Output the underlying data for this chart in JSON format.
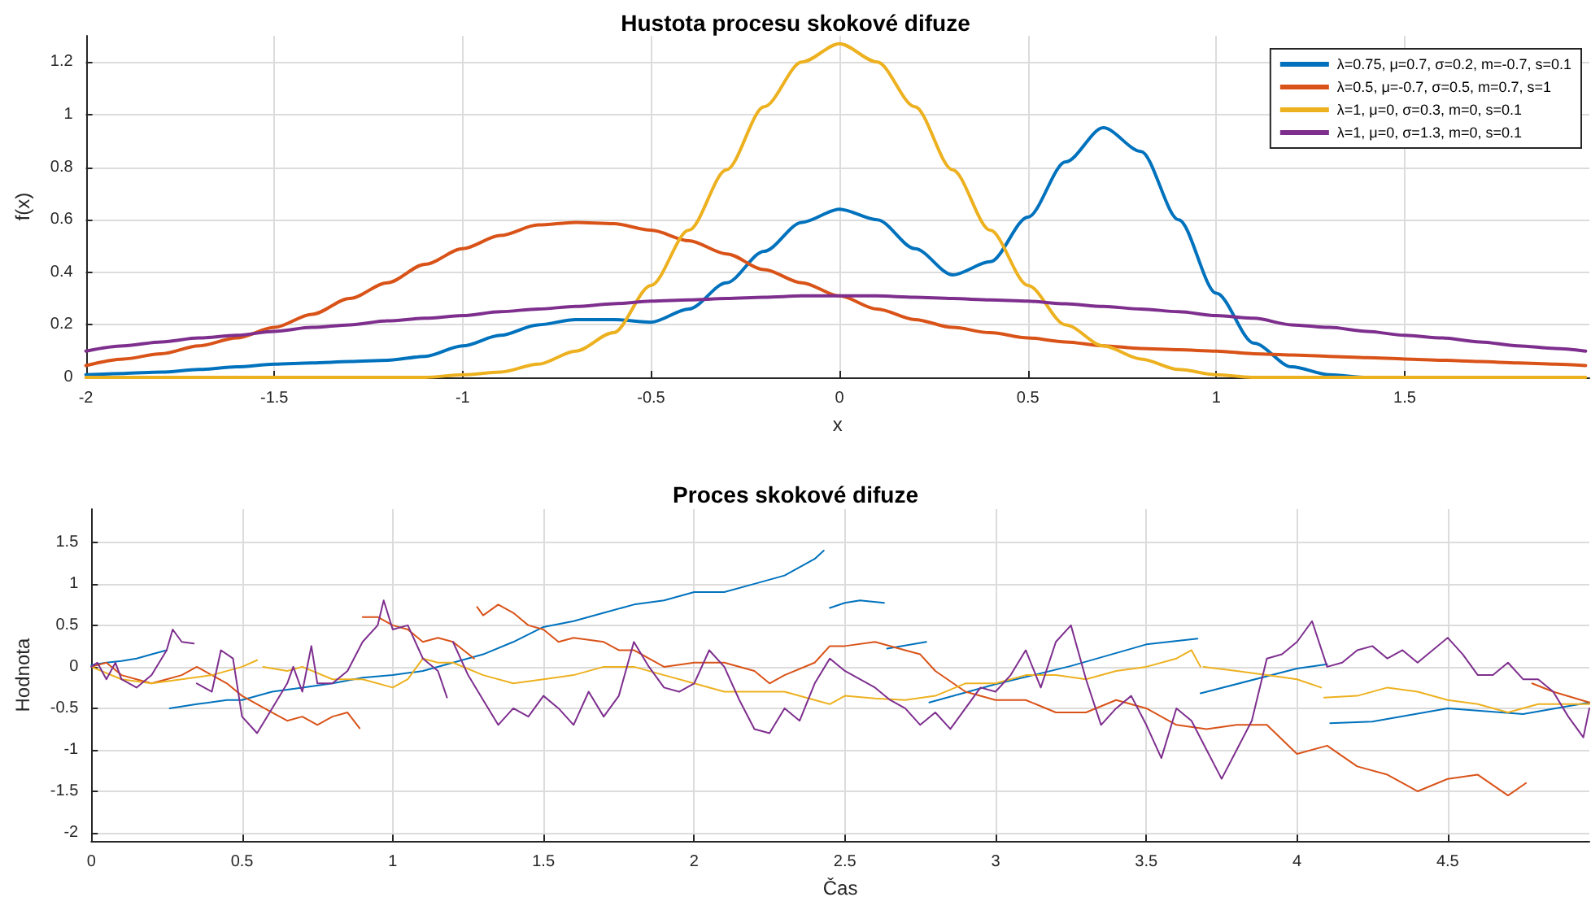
{
  "chart_data": [
    {
      "type": "line",
      "title": "Hustota procesu skokové difuze",
      "xlabel": "x",
      "ylabel": "f(x)",
      "xlim": [
        -2,
        1.99
      ],
      "xticks": [
        -2,
        -1.5,
        -1,
        -0.5,
        0,
        0.5,
        1,
        1.5
      ],
      "ylim": [
        0,
        1.3
      ],
      "yticks": [
        0,
        0.2,
        0.4,
        0.6,
        0.8,
        1,
        1.2
      ],
      "grid": true,
      "legend": "top right",
      "marker": "none",
      "line_style": "solid",
      "x": [
        -2,
        -1.9,
        -1.8,
        -1.7,
        -1.6,
        -1.5,
        -1.4,
        -1.3,
        -1.2,
        -1.1,
        -1,
        -0.9,
        -0.8,
        -0.7,
        -0.6,
        -0.5,
        -0.4,
        -0.3,
        -0.2,
        -0.1,
        0,
        0.1,
        0.2,
        0.3,
        0.4,
        0.5,
        0.6,
        0.7,
        0.8,
        0.9,
        1,
        1.1,
        1.2,
        1.3,
        1.4,
        1.5,
        1.6,
        1.7,
        1.8,
        1.9,
        1.98
      ],
      "series": [
        {
          "name": "λ=0.75, μ=0.7, σ=0.2, m=-0.7, s=0.1",
          "color": "#0072bd",
          "values": [
            0.01,
            0.015,
            0.02,
            0.03,
            0.04,
            0.05,
            0.055,
            0.06,
            0.065,
            0.08,
            0.12,
            0.16,
            0.2,
            0.22,
            0.22,
            0.21,
            0.26,
            0.36,
            0.48,
            0.59,
            0.64,
            0.6,
            0.49,
            0.39,
            0.44,
            0.61,
            0.82,
            0.95,
            0.86,
            0.6,
            0.32,
            0.13,
            0.04,
            0.01,
            0,
            0,
            null,
            null,
            null,
            null,
            null
          ]
        },
        {
          "name": "λ=0.5, μ=-0.7, σ=0.5, m=0.7, s=1",
          "color": "#d95319",
          "values": [
            0.045,
            0.07,
            0.09,
            0.12,
            0.15,
            0.19,
            0.24,
            0.3,
            0.36,
            0.43,
            0.49,
            0.54,
            0.58,
            0.59,
            0.585,
            0.56,
            0.52,
            0.47,
            0.41,
            0.36,
            0.31,
            0.26,
            0.22,
            0.19,
            0.17,
            0.15,
            0.135,
            0.12,
            0.11,
            0.105,
            0.1,
            0.09,
            0.085,
            0.08,
            0.075,
            0.07,
            0.065,
            0.06,
            0.055,
            0.05,
            0.045
          ]
        },
        {
          "name": "λ=1, μ=0, σ=0.3, m=0, s=0.1",
          "color": "#edb120",
          "values": [
            0,
            0,
            0,
            0,
            0,
            0,
            0,
            0,
            0,
            0,
            0.01,
            0.02,
            0.05,
            0.1,
            0.17,
            0.35,
            0.56,
            0.79,
            1.03,
            1.2,
            1.27,
            1.2,
            1.03,
            0.79,
            0.56,
            0.35,
            0.2,
            0.12,
            0.07,
            0.03,
            0.01,
            0,
            0,
            0,
            0,
            0,
            0,
            0,
            0,
            0,
            0
          ]
        },
        {
          "name": "λ=1, μ=0, σ=1.3, m=0, s=0.1",
          "color": "#7e2f8e",
          "values": [
            0.1,
            0.12,
            0.135,
            0.15,
            0.16,
            0.175,
            0.19,
            0.2,
            0.215,
            0.225,
            0.235,
            0.25,
            0.26,
            0.27,
            0.28,
            0.29,
            0.295,
            0.3,
            0.305,
            0.31,
            0.31,
            0.31,
            0.305,
            0.3,
            0.295,
            0.29,
            0.28,
            0.27,
            0.26,
            0.25,
            0.235,
            0.225,
            0.2,
            0.19,
            0.175,
            0.16,
            0.15,
            0.135,
            0.12,
            0.11,
            0.1
          ]
        }
      ]
    },
    {
      "type": "line",
      "title": "Proces skokové difuze",
      "xlabel": "Čas",
      "ylabel": "Hodnota",
      "xlim": [
        0,
        4.97
      ],
      "xticks": [
        0,
        0.5,
        1,
        1.5,
        2,
        2.5,
        3,
        3.5,
        4,
        4.5
      ],
      "ylim": [
        -2.1,
        1.9
      ],
      "yticks": [
        -2,
        -1.5,
        -1,
        -0.5,
        0,
        0.5,
        1,
        1.5
      ],
      "grid": true,
      "marker": "none",
      "line_style": "solid",
      "series": [
        {
          "color": "#0072bd",
          "x": [
            0,
            0.05,
            0.1,
            0.15,
            0.2,
            0.25,
            0.255,
            0.26,
            0.35,
            0.45,
            0.5,
            0.6,
            0.7,
            0.8,
            0.9,
            1,
            1.1,
            1.2,
            1.3,
            1.4,
            1.5,
            1.6,
            1.7,
            1.8,
            1.9,
            2,
            2.1,
            2.2,
            2.3,
            2.4,
            2.43,
            2.435,
            2.45,
            2.5,
            2.55,
            2.63,
            2.635,
            2.64,
            2.77,
            2.775,
            2.78,
            3,
            3.25,
            3.5,
            3.67,
            3.675,
            3.68,
            4,
            4.1,
            4.105,
            4.11,
            4.25,
            4.5,
            4.75,
            4.97
          ],
          "values": [
            0.02,
            0.05,
            0.07,
            0.1,
            0.15,
            0.2,
            null,
            -0.5,
            -0.45,
            -0.4,
            -0.4,
            -0.3,
            -0.25,
            -0.2,
            -0.13,
            -0.1,
            -0.05,
            0.05,
            0.15,
            0.3,
            0.48,
            0.55,
            0.65,
            0.75,
            0.8,
            0.9,
            0.9,
            1,
            1.1,
            1.3,
            1.4,
            null,
            0.71,
            0.77,
            0.8,
            0.77,
            null,
            0.22,
            0.3,
            null,
            -0.43,
            -0.21,
            0.01,
            0.27,
            0.34,
            null,
            -0.32,
            -0.02,
            0.03,
            null,
            -0.68,
            -0.66,
            -0.5,
            -0.57,
            -0.43
          ]
        },
        {
          "color": "#d95319",
          "x": [
            0,
            0.05,
            0.1,
            0.15,
            0.2,
            0.25,
            0.3,
            0.35,
            0.4,
            0.45,
            0.5,
            0.55,
            0.6,
            0.65,
            0.7,
            0.75,
            0.8,
            0.85,
            0.89,
            0.895,
            0.9,
            0.95,
            1,
            1.05,
            1.1,
            1.15,
            1.2,
            1.27,
            1.275,
            1.28,
            1.3,
            1.35,
            1.4,
            1.45,
            1.5,
            1.55,
            1.6,
            1.7,
            1.75,
            1.8,
            1.85,
            1.9,
            2,
            2.1,
            2.2,
            2.25,
            2.3,
            2.4,
            2.45,
            2.5,
            2.6,
            2.7,
            2.75,
            2.8,
            2.9,
            3,
            3.1,
            3.2,
            3.3,
            3.4,
            3.5,
            3.6,
            3.7,
            3.8,
            3.9,
            4,
            4.1,
            4.2,
            4.3,
            4.4,
            4.5,
            4.6,
            4.7,
            4.76,
            4.77,
            4.78,
            4.85,
            4.97
          ],
          "values": [
            0,
            0.05,
            -0.1,
            -0.15,
            -0.2,
            -0.15,
            -0.1,
            0,
            -0.1,
            -0.2,
            -0.35,
            -0.45,
            -0.55,
            -0.65,
            -0.6,
            -0.7,
            -0.6,
            -0.55,
            -0.74,
            null,
            0.6,
            0.6,
            0.5,
            0.45,
            0.3,
            0.35,
            0.3,
            0.1,
            null,
            0.72,
            0.62,
            0.75,
            0.65,
            0.5,
            0.45,
            0.3,
            0.35,
            0.3,
            0.2,
            0.2,
            0.1,
            0,
            0.05,
            0.05,
            -0.05,
            -0.2,
            -0.1,
            0.05,
            0.25,
            0.25,
            0.3,
            0.2,
            0.15,
            -0.05,
            -0.3,
            -0.4,
            -0.4,
            -0.55,
            -0.55,
            -0.4,
            -0.5,
            -0.7,
            -0.75,
            -0.7,
            -0.7,
            -1.05,
            -0.95,
            -1.2,
            -1.3,
            -1.5,
            -1.35,
            -1.3,
            -1.55,
            -1.4,
            null,
            -0.2,
            -0.3,
            -0.43
          ]
        },
        {
          "color": "#edb120",
          "x": [
            0,
            0.1,
            0.2,
            0.3,
            0.4,
            0.5,
            0.55,
            0.56,
            0.57,
            0.65,
            0.7,
            0.8,
            0.9,
            1,
            1.05,
            1.1,
            1.15,
            1.2,
            1.3,
            1.4,
            1.5,
            1.6,
            1.7,
            1.8,
            1.9,
            2,
            2.1,
            2.2,
            2.3,
            2.4,
            2.45,
            2.5,
            2.6,
            2.7,
            2.8,
            2.9,
            3,
            3.1,
            3.2,
            3.3,
            3.4,
            3.5,
            3.6,
            3.65,
            3.68,
            3.685,
            3.69,
            3.8,
            3.9,
            4,
            4.08,
            4.085,
            4.09,
            4.2,
            4.3,
            4.4,
            4.5,
            4.6,
            4.7,
            4.8,
            4.9,
            4.97
          ],
          "values": [
            0,
            -0.15,
            -0.2,
            -0.15,
            -0.1,
            0,
            0.08,
            null,
            0,
            -0.05,
            0,
            -0.15,
            -0.15,
            -0.25,
            -0.15,
            0.1,
            0.05,
            0.05,
            -0.1,
            -0.2,
            -0.15,
            -0.1,
            0,
            0,
            -0.1,
            -0.2,
            -0.3,
            -0.3,
            -0.3,
            -0.4,
            -0.45,
            -0.35,
            -0.38,
            -0.4,
            -0.35,
            -0.2,
            -0.2,
            -0.1,
            -0.1,
            -0.15,
            -0.05,
            0,
            0.1,
            0.2,
            0,
            null,
            0,
            -0.05,
            -0.1,
            -0.15,
            -0.25,
            null,
            -0.37,
            -0.35,
            -0.25,
            -0.3,
            -0.4,
            -0.45,
            -0.55,
            -0.45,
            -0.45,
            -0.45
          ]
        },
        {
          "color": "#7e2f8e",
          "x": [
            0,
            0.02,
            0.05,
            0.08,
            0.1,
            0.15,
            0.2,
            0.25,
            0.27,
            0.3,
            0.34,
            0.345,
            0.35,
            0.4,
            0.43,
            0.47,
            0.5,
            0.55,
            0.6,
            0.65,
            0.67,
            0.7,
            0.73,
            0.75,
            0.8,
            0.85,
            0.9,
            0.95,
            0.97,
            1,
            1.05,
            1.1,
            1.15,
            1.18,
            1.19,
            1.2,
            1.25,
            1.3,
            1.35,
            1.4,
            1.45,
            1.5,
            1.55,
            1.6,
            1.65,
            1.7,
            1.75,
            1.8,
            1.85,
            1.9,
            1.95,
            2,
            2.05,
            2.1,
            2.15,
            2.2,
            2.25,
            2.3,
            2.35,
            2.4,
            2.45,
            2.5,
            2.55,
            2.6,
            2.65,
            2.7,
            2.75,
            2.8,
            2.85,
            2.9,
            2.95,
            3,
            3.05,
            3.1,
            3.15,
            3.2,
            3.25,
            3.3,
            3.35,
            3.4,
            3.45,
            3.5,
            3.55,
            3.6,
            3.65,
            3.7,
            3.75,
            3.8,
            3.85,
            3.9,
            3.95,
            4,
            4.05,
            4.1,
            4.15,
            4.2,
            4.25,
            4.3,
            4.35,
            4.4,
            4.5,
            4.55,
            4.6,
            4.65,
            4.7,
            4.75,
            4.8,
            4.85,
            4.9,
            4.95,
            4.97
          ],
          "values": [
            0,
            0.05,
            -0.15,
            0.05,
            -0.15,
            -0.25,
            -0.1,
            0.2,
            0.45,
            0.3,
            0.28,
            null,
            -0.2,
            -0.3,
            0.2,
            0.1,
            -0.6,
            -0.8,
            -0.5,
            -0.2,
            0,
            -0.3,
            0.25,
            -0.2,
            -0.2,
            -0.05,
            0.3,
            0.5,
            0.8,
            0.45,
            0.5,
            0.1,
            -0.05,
            -0.37,
            null,
            0.3,
            -0.1,
            -0.4,
            -0.7,
            -0.5,
            -0.6,
            -0.35,
            -0.5,
            -0.7,
            -0.3,
            -0.6,
            -0.35,
            0.3,
            0,
            -0.25,
            -0.3,
            -0.2,
            0.2,
            0,
            -0.4,
            -0.75,
            -0.8,
            -0.5,
            -0.65,
            -0.2,
            0.1,
            -0.05,
            -0.15,
            -0.25,
            -0.4,
            -0.5,
            -0.7,
            -0.55,
            -0.75,
            -0.5,
            -0.25,
            -0.3,
            -0.1,
            0.2,
            -0.25,
            0.3,
            0.5,
            -0.15,
            -0.7,
            -0.5,
            -0.35,
            -0.7,
            -1.1,
            -0.5,
            -0.65,
            -1,
            -1.35,
            -1,
            -0.65,
            0.1,
            0.15,
            0.3,
            0.55,
            0,
            0.05,
            0.2,
            0.25,
            0.1,
            0.2,
            0.05,
            0.35,
            0.15,
            -0.1,
            -0.1,
            0.05,
            -0.15,
            -0.15,
            -0.3,
            -0.6,
            -0.85,
            -0.5
          ]
        }
      ]
    }
  ]
}
